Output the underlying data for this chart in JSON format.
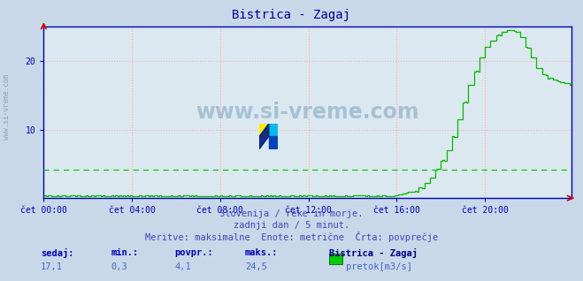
{
  "title": "Bistrica - Zagaj",
  "title_color": "#000099",
  "bg_color": "#c8d8e8",
  "plot_bg_color": "#dce8f0",
  "ylim": [
    0,
    25
  ],
  "yticks": [
    10,
    20
  ],
  "x_labels": [
    "čet 00:00",
    "čet 04:00",
    "čet 08:00",
    "čet 12:00",
    "čet 16:00",
    "čet 20:00"
  ],
  "x_ticks_pos": [
    0,
    48,
    96,
    144,
    192,
    240
  ],
  "total_points": 288,
  "min_val": 0.3,
  "max_val": 24.5,
  "avg_val": 4.1,
  "cur_val": 17.1,
  "grid_color_major": "#ffaaaa",
  "grid_color_minor": "#cccccc",
  "line_color": "#00bb00",
  "avg_line_color": "#00cc00",
  "watermark_text": "www.si-vreme.com",
  "footer_line1": "Slovenija / reke in morje.",
  "footer_line2": "zadnji dan / 5 minut.",
  "footer_line3": "Meritve: maksimalne  Enote: metrične  Črta: povprečje",
  "footer_color": "#4444bb",
  "label_color": "#0000bb",
  "val_color": "#4466cc",
  "series_color": "#000088",
  "axis_color": "#0000bb",
  "sidebar_color": "#7799aa"
}
